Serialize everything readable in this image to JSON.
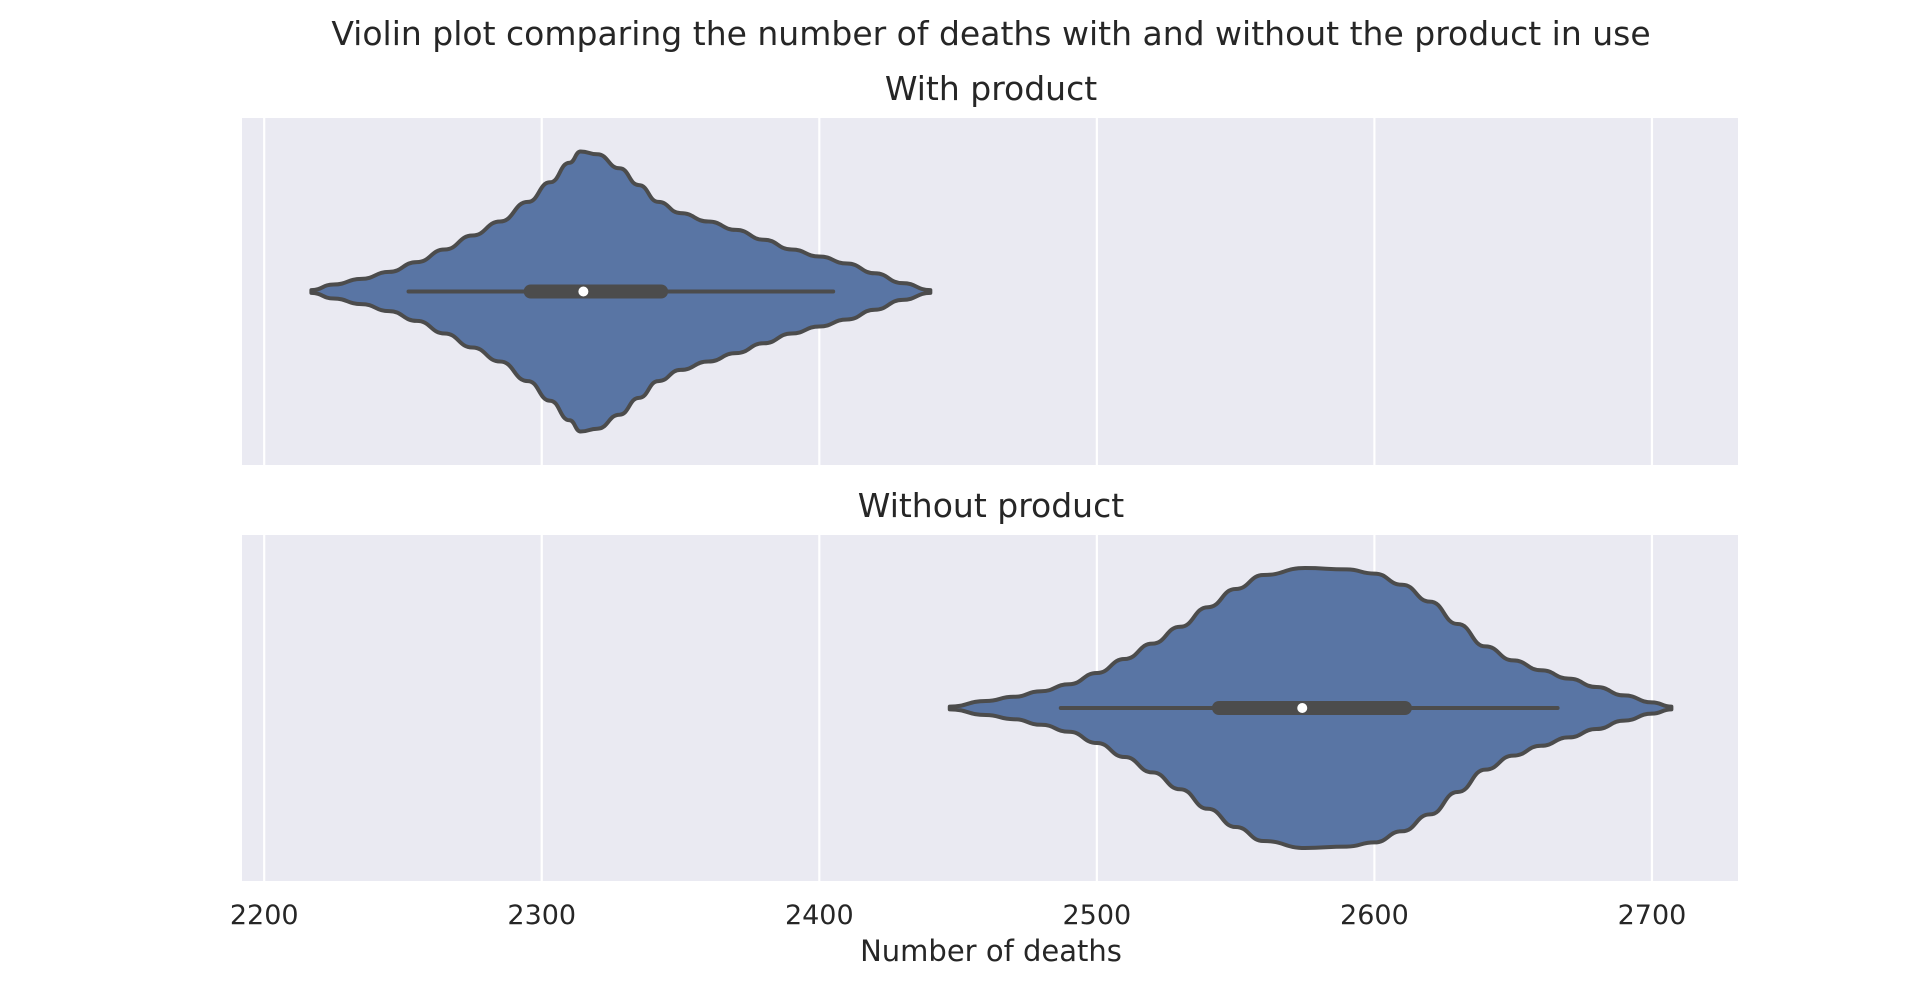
{
  "chart_data": {
    "type": "violin",
    "title": "Violin plot comparing the number of deaths with and without the product in use",
    "xlabel": "Number of deaths",
    "xlim": [
      2192,
      2731
    ],
    "xticks": [
      2200,
      2300,
      2400,
      2500,
      2600,
      2700
    ],
    "grid": true,
    "panel_background": "#EAEAF2",
    "violin_color": "#5975A4",
    "edge_color": "#4C4C4C",
    "panels": [
      {
        "title": "With product",
        "min": 2252,
        "q1": 2296,
        "median": 2315,
        "q3": 2343,
        "max": 2405,
        "kde_min": 2217,
        "kde_max": 2440,
        "density": [
          [
            2217,
            0.01
          ],
          [
            2225,
            0.05
          ],
          [
            2235,
            0.09
          ],
          [
            2245,
            0.14
          ],
          [
            2255,
            0.21
          ],
          [
            2265,
            0.3
          ],
          [
            2275,
            0.4
          ],
          [
            2285,
            0.5
          ],
          [
            2295,
            0.64
          ],
          [
            2303,
            0.78
          ],
          [
            2310,
            0.92
          ],
          [
            2314,
            1.0
          ],
          [
            2320,
            0.98
          ],
          [
            2328,
            0.88
          ],
          [
            2335,
            0.76
          ],
          [
            2342,
            0.64
          ],
          [
            2350,
            0.56
          ],
          [
            2360,
            0.5
          ],
          [
            2370,
            0.44
          ],
          [
            2380,
            0.37
          ],
          [
            2390,
            0.3
          ],
          [
            2400,
            0.25
          ],
          [
            2410,
            0.2
          ],
          [
            2420,
            0.13
          ],
          [
            2430,
            0.06
          ],
          [
            2440,
            0.01
          ]
        ]
      },
      {
        "title": "Without product",
        "min": 2487,
        "q1": 2544,
        "median": 2574,
        "q3": 2611,
        "max": 2666,
        "kde_min": 2447,
        "kde_max": 2707,
        "density": [
          [
            2447,
            0.01
          ],
          [
            2460,
            0.05
          ],
          [
            2470,
            0.08
          ],
          [
            2480,
            0.12
          ],
          [
            2490,
            0.17
          ],
          [
            2500,
            0.25
          ],
          [
            2510,
            0.35
          ],
          [
            2520,
            0.46
          ],
          [
            2530,
            0.58
          ],
          [
            2540,
            0.72
          ],
          [
            2550,
            0.85
          ],
          [
            2560,
            0.95
          ],
          [
            2575,
            1.0
          ],
          [
            2590,
            0.99
          ],
          [
            2600,
            0.96
          ],
          [
            2610,
            0.88
          ],
          [
            2620,
            0.76
          ],
          [
            2630,
            0.6
          ],
          [
            2640,
            0.44
          ],
          [
            2650,
            0.34
          ],
          [
            2660,
            0.27
          ],
          [
            2670,
            0.21
          ],
          [
            2680,
            0.15
          ],
          [
            2690,
            0.09
          ],
          [
            2700,
            0.04
          ],
          [
            2707,
            0.01
          ]
        ]
      }
    ]
  }
}
